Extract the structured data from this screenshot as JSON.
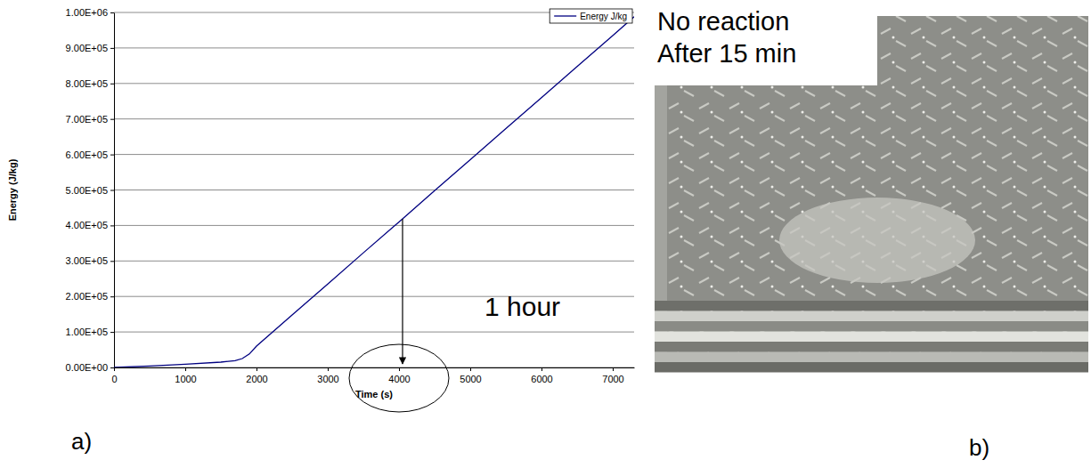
{
  "chart_data": {
    "type": "line",
    "panel_label": "a)",
    "x_label": "Time (s)",
    "y_label": "Energy (J/kg)",
    "annotation": "1 hour",
    "x": [
      0,
      500,
      1000,
      1500,
      1700,
      1800,
      1900,
      2000,
      2500,
      3000,
      3500,
      4000,
      4500,
      5000,
      5500,
      6000,
      6500,
      7000,
      7300
    ],
    "series": [
      {
        "name": "Energy J/kg",
        "color": "#000080",
        "values": [
          0,
          4000,
          9000,
          15000,
          19000,
          25000,
          38000,
          60000,
          148000,
          235000,
          323000,
          410000,
          498000,
          585000,
          673000,
          760000,
          848000,
          935000,
          988000
        ]
      }
    ],
    "xlim": [
      0,
      7300
    ],
    "xticks": [
      0,
      1000,
      2000,
      3000,
      4000,
      5000,
      6000,
      7000
    ],
    "ylim": [
      0,
      1000000
    ],
    "yticks": [
      {
        "value": 0,
        "label": "0.00E+00"
      },
      {
        "value": 100000,
        "label": "1.00E+05"
      },
      {
        "value": 200000,
        "label": "2.00E+05"
      },
      {
        "value": 300000,
        "label": "3.00E+05"
      },
      {
        "value": 400000,
        "label": "4.00E+05"
      },
      {
        "value": 500000,
        "label": "5.00E+05"
      },
      {
        "value": 600000,
        "label": "6.00E+05"
      },
      {
        "value": 700000,
        "label": "7.00E+05"
      },
      {
        "value": 800000,
        "label": "8.00E+05"
      },
      {
        "value": 900000,
        "label": "9.00E+05"
      },
      {
        "value": 1000000,
        "label": "1.00E+06"
      }
    ],
    "grid": true,
    "legend": "upper right"
  },
  "image_panel": {
    "panel_label": "b)",
    "caption": [
      "No reaction",
      "After 15 min"
    ]
  }
}
